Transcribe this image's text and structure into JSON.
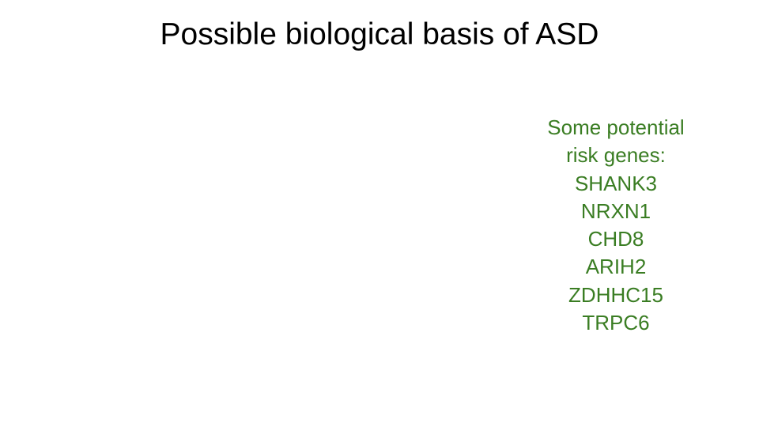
{
  "slide": {
    "title": "Possible biological basis of ASD",
    "text_color_accent": "#3a7d23",
    "genes_heading_line1": "Some potential",
    "genes_heading_line2": "risk genes:",
    "genes": [
      "SHANK3",
      "NRXN1",
      "CHD8",
      "ARIH2",
      "ZDHHC15",
      "TRPC6"
    ]
  }
}
